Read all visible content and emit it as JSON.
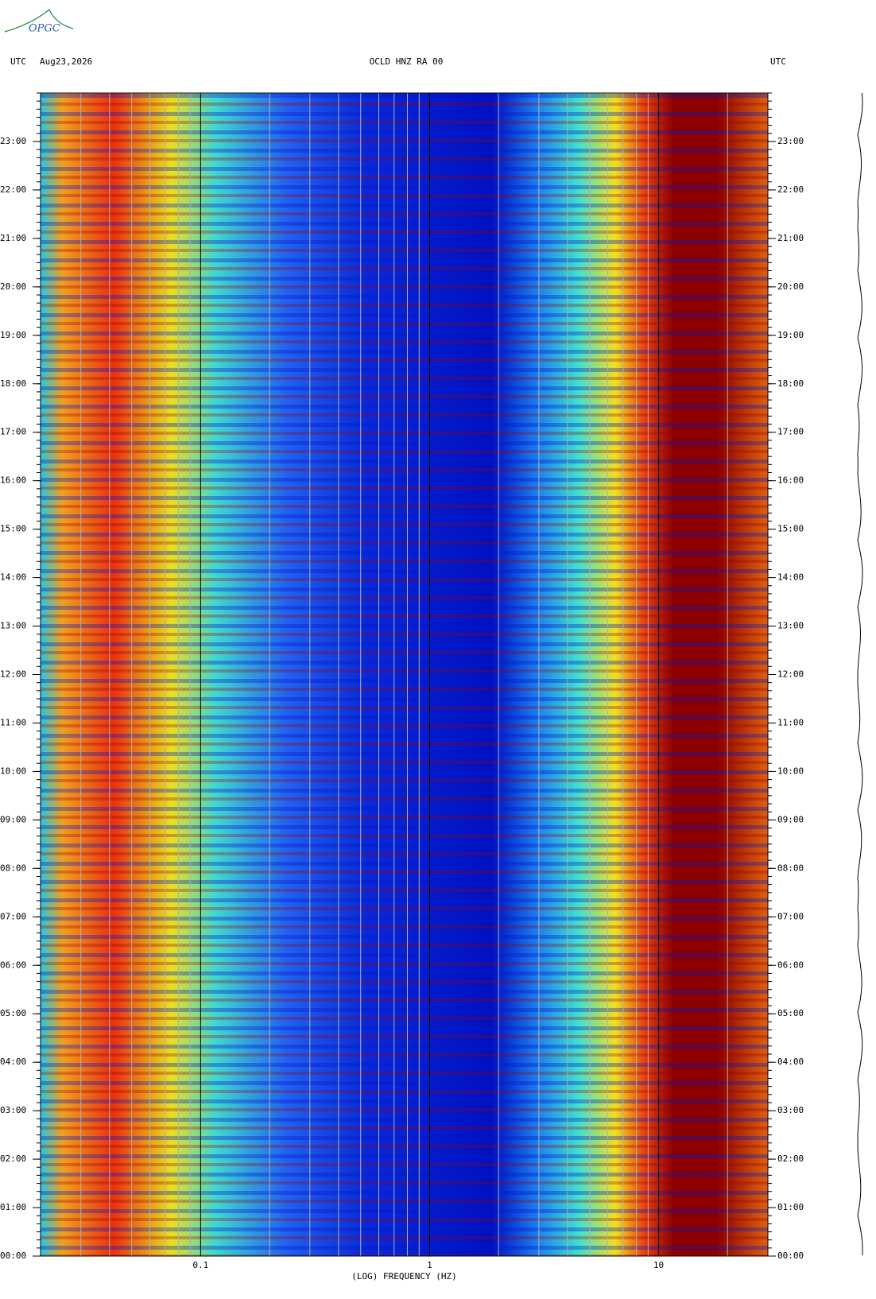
{
  "header": {
    "logo": "OPGC",
    "left_zone": "UTC",
    "date": "Aug23,2026",
    "station": "OCLD HNZ RA 00",
    "right_zone": "UTC"
  },
  "chart_data": {
    "type": "spectrogram",
    "x_label": "(LOG) FREQUENCY (HZ)",
    "x_log": true,
    "xlim": [
      0.02,
      30
    ],
    "xticks": [
      0.1,
      1,
      10
    ],
    "xgrid": [
      0.03,
      0.04,
      0.05,
      0.06,
      0.07,
      0.08,
      0.09,
      0.2,
      0.3,
      0.4,
      0.5,
      0.6,
      0.7,
      0.8,
      0.9,
      2,
      3,
      4,
      5,
      6,
      7,
      8,
      9,
      20
    ],
    "ylim": [
      0,
      24
    ],
    "yticks": [
      {
        "value": 0,
        "label": "00:00"
      },
      {
        "value": 1,
        "label": "01:00"
      },
      {
        "value": 2,
        "label": "02:00"
      },
      {
        "value": 3,
        "label": "03:00"
      },
      {
        "value": 4,
        "label": "04:00"
      },
      {
        "value": 5,
        "label": "05:00"
      },
      {
        "value": 6,
        "label": "06:00"
      },
      {
        "value": 7,
        "label": "07:00"
      },
      {
        "value": 8,
        "label": "08:00"
      },
      {
        "value": 9,
        "label": "09:00"
      },
      {
        "value": 10,
        "label": "10:00"
      },
      {
        "value": 11,
        "label": "11:00"
      },
      {
        "value": 12,
        "label": "12:00"
      },
      {
        "value": 13,
        "label": "13:00"
      },
      {
        "value": 14,
        "label": "14:00"
      },
      {
        "value": 15,
        "label": "15:00"
      },
      {
        "value": 16,
        "label": "16:00"
      },
      {
        "value": 17,
        "label": "17:00"
      },
      {
        "value": 18,
        "label": "18:00"
      },
      {
        "value": 19,
        "label": "19:00"
      },
      {
        "value": 20,
        "label": "20:00"
      },
      {
        "value": 21,
        "label": "21:00"
      },
      {
        "value": 22,
        "label": "22:00"
      },
      {
        "value": 23,
        "label": "23:00"
      }
    ]
  }
}
